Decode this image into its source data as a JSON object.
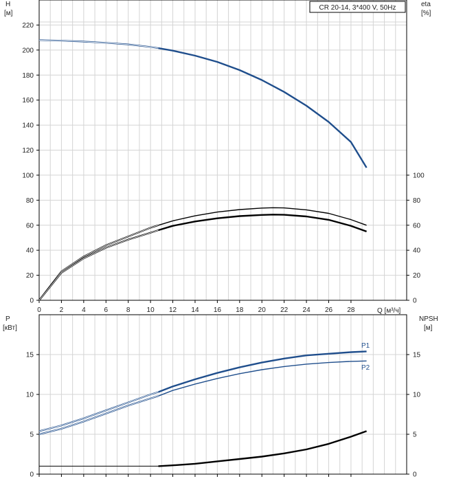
{
  "chart_data": [
    {
      "type": "line",
      "title": "CR 20-14, 3*400 V, 50Hz",
      "left_axis": {
        "label": "H",
        "unit": "[м]",
        "range": [
          0,
          240
        ],
        "ticks": [
          0,
          20,
          40,
          60,
          80,
          100,
          120,
          140,
          160,
          180,
          200,
          220
        ]
      },
      "right_axis": {
        "label": "eta",
        "unit": "[%]",
        "range": [
          0,
          240
        ],
        "ticks": [
          0,
          20,
          40,
          60,
          80,
          100
        ]
      },
      "x_axis": {
        "label": "Q [м³/ч]",
        "range": [
          0,
          33
        ],
        "ticks": [
          0,
          2,
          4,
          6,
          8,
          10,
          12,
          14,
          16,
          18,
          20,
          22,
          24,
          26,
          28
        ]
      },
      "grid": true,
      "series": [
        {
          "name": "H",
          "color": "#1f4e8c",
          "x": [
            0,
            2,
            4,
            6,
            8,
            10,
            10.7,
            12,
            14,
            16,
            18,
            20,
            22,
            24,
            26,
            28,
            29.4
          ],
          "y": [
            208,
            207.5,
            206.8,
            205.8,
            204.5,
            202.5,
            201.5,
            199.5,
            195.5,
            190.5,
            184,
            176,
            166.5,
            155.5,
            142.5,
            126.5,
            106
          ],
          "operating_from": 10.7
        },
        {
          "name": "eta_pump",
          "color": "#000000",
          "x": [
            0,
            2,
            4,
            6,
            8,
            10,
            10.7,
            12,
            14,
            16,
            18,
            20,
            21,
            22,
            24,
            26,
            28,
            29.4
          ],
          "y": [
            0,
            23,
            35,
            44,
            51,
            58,
            60,
            63.5,
            67.5,
            70.5,
            72.5,
            73.7,
            74,
            73.8,
            72.3,
            69.5,
            64.5,
            60
          ],
          "operating_from": 10.7
        },
        {
          "name": "eta_total",
          "color": "#000000",
          "x": [
            0,
            2,
            4,
            6,
            8,
            10,
            10.7,
            12,
            14,
            16,
            18,
            20,
            21,
            22,
            24,
            26,
            28,
            29.4
          ],
          "y": [
            0,
            22,
            33.5,
            42,
            48.5,
            54,
            56,
            59.5,
            63,
            65.5,
            67.3,
            68.2,
            68.5,
            68.3,
            67,
            64.3,
            59.5,
            55
          ],
          "operating_from": 10.7
        }
      ]
    },
    {
      "type": "line",
      "left_axis": {
        "label": "P",
        "unit": "[кВт]",
        "range": [
          0,
          20
        ],
        "ticks": [
          0,
          5,
          10,
          15
        ]
      },
      "right_axis": {
        "label": "NPSH",
        "unit": "[м]",
        "range": [
          0,
          20
        ],
        "ticks": [
          0,
          5,
          10,
          15
        ]
      },
      "x_axis": {
        "range": [
          0,
          33
        ],
        "ticks": [
          0,
          2,
          4,
          6,
          8,
          10,
          12,
          14,
          16,
          18,
          20,
          22,
          24,
          26,
          28
        ]
      },
      "grid": true,
      "series": [
        {
          "name": "P1",
          "color": "#1f4e8c",
          "x": [
            0,
            2,
            4,
            6,
            8,
            10,
            10.7,
            12,
            14,
            16,
            18,
            20,
            22,
            24,
            26,
            28,
            29.4
          ],
          "y": [
            5.4,
            6.1,
            7.0,
            8.0,
            9.0,
            10.0,
            10.3,
            11.0,
            11.9,
            12.7,
            13.4,
            14.0,
            14.5,
            14.9,
            15.1,
            15.3,
            15.4
          ],
          "operating_from": 10.7
        },
        {
          "name": "P2",
          "color": "#1f4e8c",
          "x": [
            0,
            2,
            4,
            6,
            8,
            10,
            10.7,
            12,
            14,
            16,
            18,
            20,
            22,
            24,
            26,
            28,
            29.4
          ],
          "y": [
            5.0,
            5.7,
            6.6,
            7.6,
            8.6,
            9.5,
            9.8,
            10.5,
            11.3,
            12.0,
            12.6,
            13.1,
            13.5,
            13.8,
            14.0,
            14.15,
            14.2
          ],
          "operating_from": 10.7
        },
        {
          "name": "NPSH",
          "color": "#000000",
          "x": [
            0,
            4,
            8,
            10.7,
            12,
            14,
            16,
            18,
            20,
            22,
            24,
            26,
            28,
            29.4
          ],
          "y": [
            1.0,
            1.0,
            1.0,
            1.0,
            1.1,
            1.3,
            1.6,
            1.9,
            2.2,
            2.6,
            3.1,
            3.8,
            4.7,
            5.4
          ],
          "operating_from": 10.7
        }
      ]
    }
  ]
}
